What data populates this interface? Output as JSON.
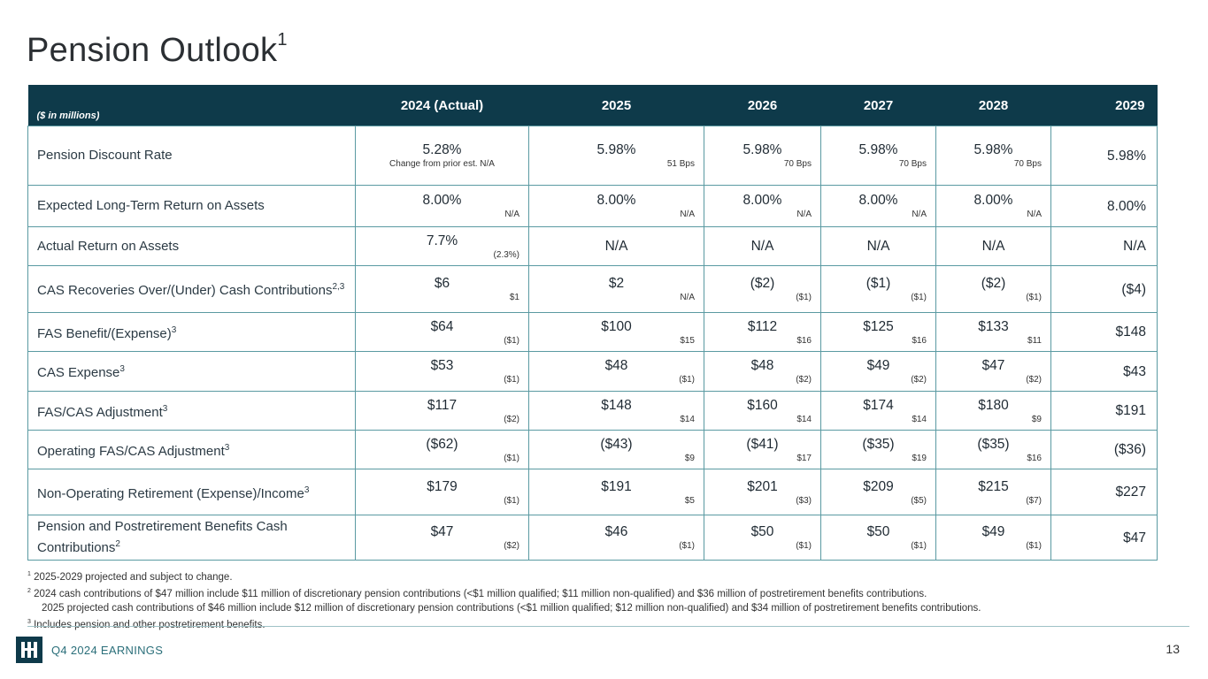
{
  "title": "Pension Outlook",
  "title_sup": "1",
  "table": {
    "units_label": "($ in millions)",
    "columns": [
      "2024 (Actual)",
      "2025",
      "2026",
      "2027",
      "2028",
      "2029"
    ],
    "rows": [
      {
        "label": "Pension Discount Rate",
        "sup": "",
        "cells": [
          {
            "v": "5.28%",
            "n": "Change from prior est.  N/A"
          },
          {
            "v": "5.98%",
            "n": "51 Bps"
          },
          {
            "v": "5.98%",
            "n": "70 Bps"
          },
          {
            "v": "5.98%",
            "n": "70 Bps"
          },
          {
            "v": "5.98%",
            "n": "70 Bps"
          },
          {
            "v": "5.98%",
            "n": ""
          }
        ]
      },
      {
        "label": "Expected Long-Term Return on Assets",
        "sup": "",
        "cells": [
          {
            "v": "8.00%",
            "n": "N/A"
          },
          {
            "v": "8.00%",
            "n": "N/A"
          },
          {
            "v": "8.00%",
            "n": "N/A"
          },
          {
            "v": "8.00%",
            "n": "N/A"
          },
          {
            "v": "8.00%",
            "n": "N/A"
          },
          {
            "v": "8.00%",
            "n": ""
          }
        ]
      },
      {
        "label": "Actual Return on Assets",
        "sup": "",
        "cells": [
          {
            "v": "7.7%",
            "n": "(2.3%)"
          },
          {
            "v": "N/A",
            "n": ""
          },
          {
            "v": "N/A",
            "n": ""
          },
          {
            "v": "N/A",
            "n": ""
          },
          {
            "v": "N/A",
            "n": ""
          },
          {
            "v": "N/A",
            "n": ""
          }
        ]
      },
      {
        "label": "CAS Recoveries Over/(Under) Cash Contributions",
        "sup": "2,3",
        "cells": [
          {
            "v": "$6",
            "n": "$1"
          },
          {
            "v": "$2",
            "n": "N/A"
          },
          {
            "v": "($2)",
            "n": "($1)"
          },
          {
            "v": "($1)",
            "n": "($1)"
          },
          {
            "v": "($2)",
            "n": "($1)"
          },
          {
            "v": "($4)",
            "n": ""
          }
        ]
      },
      {
        "label": "FAS Benefit/(Expense)",
        "sup": "3",
        "cells": [
          {
            "v": "$64",
            "n": "($1)"
          },
          {
            "v": "$100",
            "n": "$15"
          },
          {
            "v": "$112",
            "n": "$16"
          },
          {
            "v": "$125",
            "n": "$16"
          },
          {
            "v": "$133",
            "n": "$11"
          },
          {
            "v": "$148",
            "n": ""
          }
        ]
      },
      {
        "label": "CAS Expense",
        "sup": "3",
        "cells": [
          {
            "v": "$53",
            "n": "($1)"
          },
          {
            "v": "$48",
            "n": "($1)"
          },
          {
            "v": "$48",
            "n": "($2)"
          },
          {
            "v": "$49",
            "n": "($2)"
          },
          {
            "v": "$47",
            "n": "($2)"
          },
          {
            "v": "$43",
            "n": ""
          }
        ]
      },
      {
        "label": "FAS/CAS Adjustment",
        "sup": "3",
        "cells": [
          {
            "v": "$117",
            "n": "($2)"
          },
          {
            "v": "$148",
            "n": "$14"
          },
          {
            "v": "$160",
            "n": "$14"
          },
          {
            "v": "$174",
            "n": "$14"
          },
          {
            "v": "$180",
            "n": "$9"
          },
          {
            "v": "$191",
            "n": ""
          }
        ]
      },
      {
        "label": "Operating FAS/CAS Adjustment",
        "sup": "3",
        "cells": [
          {
            "v": "($62)",
            "n": "($1)"
          },
          {
            "v": "($43)",
            "n": "$9"
          },
          {
            "v": "($41)",
            "n": "$17"
          },
          {
            "v": "($35)",
            "n": "$19"
          },
          {
            "v": "($35)",
            "n": "$16"
          },
          {
            "v": "($36)",
            "n": ""
          }
        ]
      },
      {
        "label": "Non-Operating Retirement (Expense)/Income",
        "sup": "3",
        "cells": [
          {
            "v": "$179",
            "n": "($1)"
          },
          {
            "v": "$191",
            "n": "$5"
          },
          {
            "v": "$201",
            "n": "($3)"
          },
          {
            "v": "$209",
            "n": "($5)"
          },
          {
            "v": "$215",
            "n": "($7)"
          },
          {
            "v": "$227",
            "n": ""
          }
        ]
      },
      {
        "label": "Pension and Postretirement Benefits Cash Contributions",
        "sup": "2",
        "cells": [
          {
            "v": "$47",
            "n": "($2)"
          },
          {
            "v": "$46",
            "n": "($1)"
          },
          {
            "v": "$50",
            "n": "($1)"
          },
          {
            "v": "$50",
            "n": "($1)"
          },
          {
            "v": "$49",
            "n": "($1)"
          },
          {
            "v": "$47",
            "n": ""
          }
        ]
      }
    ]
  },
  "footnotes": [
    {
      "sup": "1",
      "text": "2025-2029 projected and subject to change."
    },
    {
      "sup": "2",
      "text": "2024 cash contributions of $47 million include $11 million of discretionary pension contributions (<$1 million qualified; $11 million non-qualified) and $36 million of postretirement benefits contributions."
    },
    {
      "sup": "",
      "text": "2025 projected cash contributions of $46 million include $12 million of discretionary pension contributions (<$1 million qualified; $12 million non-qualified) and $34 million of postretirement benefits contributions."
    },
    {
      "sup": "3",
      "text": "Includes pension and other postretirement benefits."
    }
  ],
  "footer": {
    "label": "Q4 2024 EARNINGS",
    "page_number": "13",
    "logo_icon": "hii-logo-icon",
    "brand_color": "#0e3a4a",
    "border_color": "#5a9aa2"
  }
}
